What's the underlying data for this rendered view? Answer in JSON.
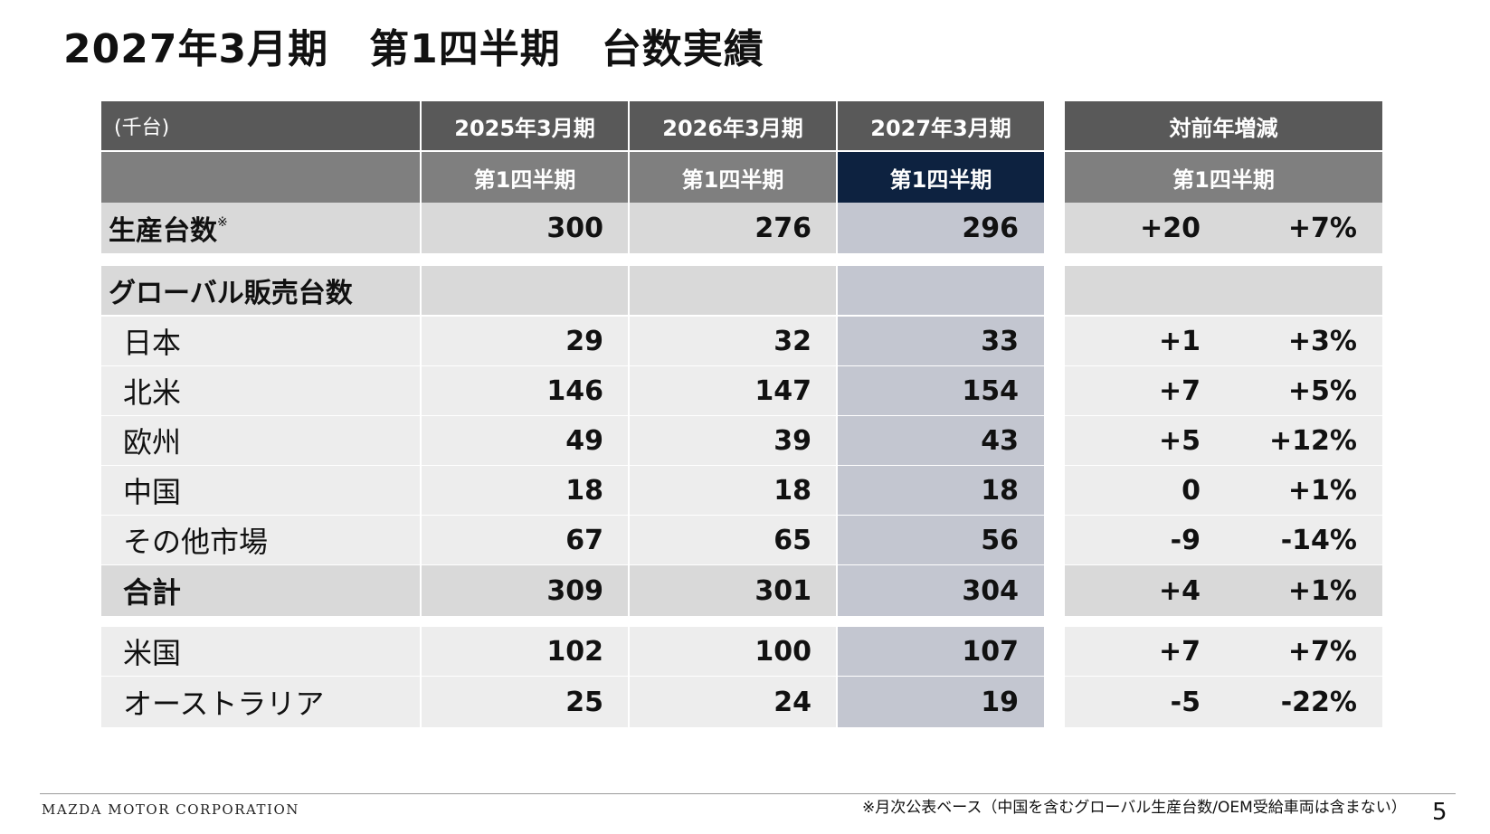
{
  "title": "2027年3月期　第1四半期　台数実績",
  "table": {
    "unit_label": "(千台)",
    "years": [
      "2025年3月期",
      "2026年3月期",
      "2027年3月期"
    ],
    "quarter_label": "第1四半期",
    "yoy_header": "対前年増減",
    "yoy_quarter_label": "第1四半期",
    "rows": {
      "production": {
        "label": "生産台数",
        "mark": "※",
        "v1": "300",
        "v2": "276",
        "v3": "296",
        "diff": "+20",
        "pct": "+7%"
      },
      "global_sales": {
        "label": "グローバル販売台数"
      },
      "japan": {
        "label": "日本",
        "v1": "29",
        "v2": "32",
        "v3": "33",
        "diff": "+1",
        "pct": "+3%"
      },
      "north_america": {
        "label": "北米",
        "v1": "146",
        "v2": "147",
        "v3": "154",
        "diff": "+7",
        "pct": "+5%"
      },
      "europe": {
        "label": "欧州",
        "v1": "49",
        "v2": "39",
        "v3": "43",
        "diff": "+5",
        "pct": "+12%"
      },
      "china": {
        "label": "中国",
        "v1": "18",
        "v2": "18",
        "v3": "18",
        "diff": "0",
        "pct": "+1%"
      },
      "other": {
        "label": "その他市場",
        "v1": "67",
        "v2": "65",
        "v3": "56",
        "diff": "-9",
        "pct": "-14%"
      },
      "total": {
        "label": "合計",
        "v1": "309",
        "v2": "301",
        "v3": "304",
        "diff": "+4",
        "pct": "+1%"
      },
      "usa": {
        "label": "米国",
        "v1": "102",
        "v2": "100",
        "v3": "107",
        "diff": "+7",
        "pct": "+7%"
      },
      "australia": {
        "label": "オーストラリア",
        "v1": "25",
        "v2": "24",
        "v3": "19",
        "diff": "-5",
        "pct": "-22%"
      }
    }
  },
  "footer": {
    "brand": "MAZDA MOTOR CORPORATION",
    "note": "※月次公表ベース（中国を含むグローバル生産台数/OEM受給車両は含まない）",
    "page": "5"
  }
}
